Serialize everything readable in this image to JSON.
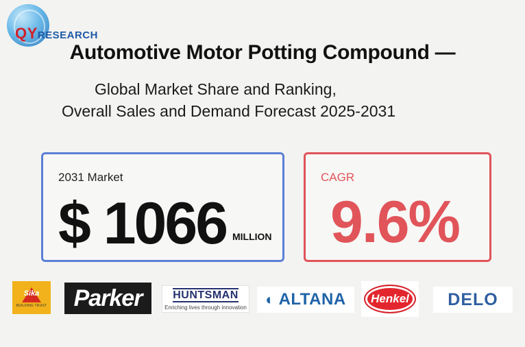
{
  "logo": {
    "qy": "QY",
    "rest": "RESEARCH"
  },
  "header": {
    "title": "Automotive Motor Potting Compound —",
    "subtitle_line1": "Global Market Share and Ranking,",
    "subtitle_line2": "Overall Sales and Demand Forecast 2025-2031"
  },
  "market_card": {
    "label": "2031 Market",
    "value": "$ 1066",
    "unit": "MILLION",
    "border_color": "#5b7fd6"
  },
  "cagr_card": {
    "label": "CAGR",
    "value": "9.6%",
    "accent_color": "#e0545a"
  },
  "brands": {
    "sika": {
      "name": "Sika",
      "tagline": "BUILDING TRUST"
    },
    "parker": {
      "name": "Parker"
    },
    "huntsman": {
      "name": "HUNTSMAN",
      "tagline": "Enriching lives through innovation"
    },
    "altana": {
      "name": "ALTANA"
    },
    "henkel": {
      "name": "Henkel"
    },
    "delo": {
      "name": "DELO"
    }
  }
}
